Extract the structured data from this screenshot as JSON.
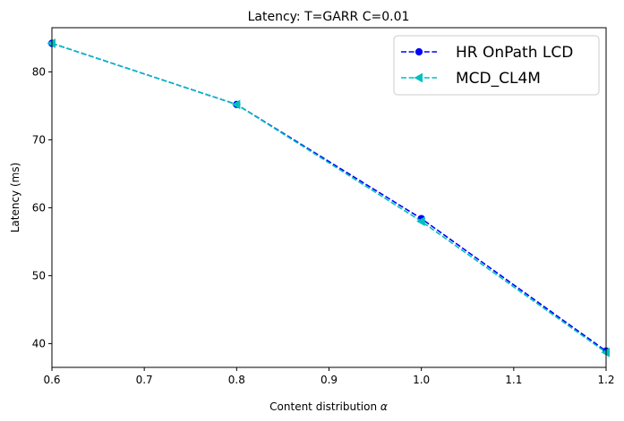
{
  "chart_data": {
    "type": "line",
    "title": "Latency: T=GARR C=0.01",
    "xlabel": "Content distribution",
    "xlabel_symbol": "α",
    "ylabel": "Latency (ms)",
    "xlim": [
      0.6,
      1.2
    ],
    "ylim": [
      36.5,
      86.5
    ],
    "xticks": [
      "0.6",
      "0.7",
      "0.8",
      "0.9",
      "1.0",
      "1.1",
      "1.2"
    ],
    "yticks": [
      "40",
      "50",
      "60",
      "70",
      "80"
    ],
    "grid": false,
    "legend_position": "top-right",
    "series": [
      {
        "name": "HR OnPath LCD",
        "color": "#0000ff",
        "marker": "circle",
        "linestyle": "dashed",
        "x": [
          0.6,
          0.8,
          1.0,
          1.2
        ],
        "y": [
          84.2,
          75.2,
          58.4,
          38.9
        ]
      },
      {
        "name": "MCD_CL4M",
        "color": "#00bfbf",
        "marker": "triangle-left",
        "linestyle": "dashed",
        "x": [
          0.6,
          0.8,
          1.0,
          1.2
        ],
        "y": [
          84.2,
          75.2,
          58.0,
          38.7
        ]
      }
    ]
  }
}
